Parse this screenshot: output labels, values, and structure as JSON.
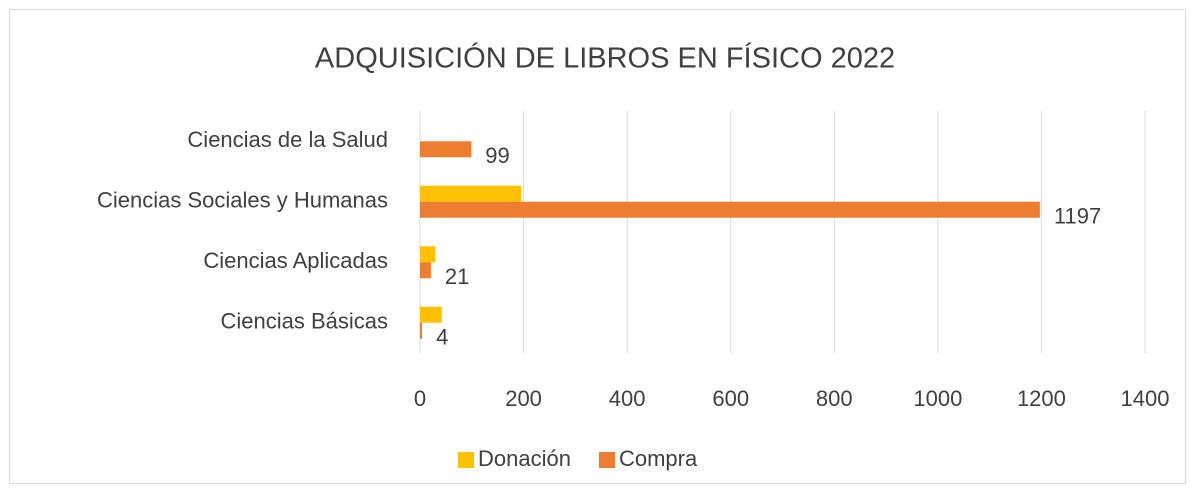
{
  "chart_data": {
    "type": "bar",
    "orientation": "horizontal",
    "title": "ADQUISICIÓN DE LIBROS EN FÍSICO 2022",
    "categories": [
      "Ciencias de la Salud",
      "Ciencias Sociales y Humanas",
      "Ciencias Aplicadas",
      "Ciencias Básicas"
    ],
    "series": [
      {
        "name": "Donación",
        "color": "#ffc000",
        "values": [
          0,
          195,
          29,
          42
        ]
      },
      {
        "name": "Compra",
        "color": "#ed7d31",
        "values": [
          99,
          1197,
          21,
          4
        ],
        "show_labels": true
      }
    ],
    "xlim": [
      0,
      1400
    ],
    "xticks": [
      0,
      200,
      400,
      600,
      800,
      1000,
      1200,
      1400
    ],
    "grid": true,
    "legend": "bottom"
  }
}
